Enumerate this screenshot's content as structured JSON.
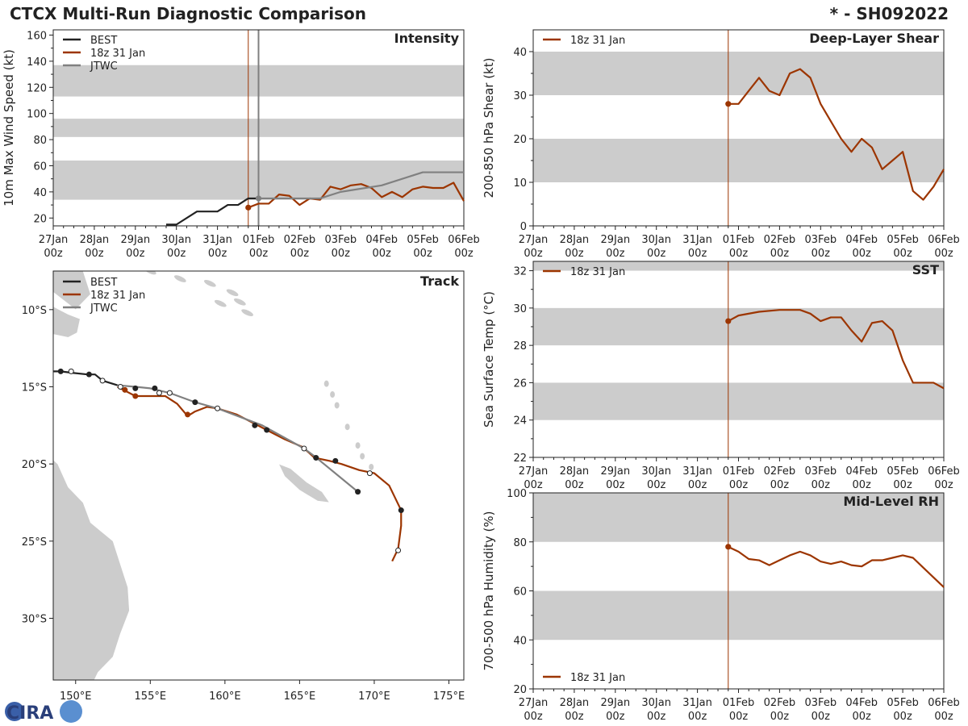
{
  "header": {
    "title": "CTCX Multi-Run Diagnostic Comparison",
    "storm_id": "* - SH092022",
    "logo_text": "CIRA"
  },
  "colors": {
    "best": "#222222",
    "run": "#9c3500",
    "jtwc": "#808080",
    "band": "#cccccc",
    "land": "#cccccc",
    "vline_run": "#9c3500",
    "vline_jtwc": "#808080"
  },
  "time_axis": {
    "labels": [
      "27Jan\n00z",
      "28Jan\n00z",
      "29Jan\n00z",
      "30Jan\n00z",
      "31Jan\n00z",
      "01Feb\n00z",
      "02Feb\n00z",
      "03Feb\n00z",
      "04Feb\n00z",
      "05Feb\n00z",
      "06Feb\n00z"
    ],
    "range_hours": [
      0,
      240
    ],
    "run_init_hour": 114,
    "jtwc_init_hour": 120
  },
  "chart_data": [
    {
      "id": "intensity",
      "type": "line",
      "title": "Intensity",
      "ylabel": "10m Max Wind Speed (kt)",
      "ylim": [
        14,
        164
      ],
      "yticks": [
        20,
        40,
        60,
        80,
        100,
        120,
        140,
        160
      ],
      "bands": [
        [
          34,
          64
        ],
        [
          82,
          96
        ],
        [
          113,
          137
        ]
      ],
      "legend": [
        "BEST",
        "18z 31 Jan",
        "JTWC"
      ],
      "series": [
        {
          "name": "BEST",
          "key": "best",
          "points": [
            [
              66,
              15
            ],
            [
              72,
              15
            ],
            [
              84,
              25
            ],
            [
              96,
              25
            ],
            [
              102,
              30
            ],
            [
              108,
              30
            ],
            [
              114,
              35
            ],
            [
              120,
              35
            ]
          ]
        },
        {
          "name": "18z 31 Jan",
          "key": "run",
          "start_marker": true,
          "points": [
            [
              114,
              28
            ],
            [
              120,
              31
            ],
            [
              126,
              31
            ],
            [
              132,
              38
            ],
            [
              138,
              37
            ],
            [
              144,
              30
            ],
            [
              150,
              35
            ],
            [
              156,
              34
            ],
            [
              162,
              44
            ],
            [
              168,
              42
            ],
            [
              174,
              45
            ],
            [
              180,
              46
            ],
            [
              186,
              43
            ],
            [
              192,
              36
            ],
            [
              198,
              40
            ],
            [
              204,
              36
            ],
            [
              210,
              42
            ],
            [
              216,
              44
            ],
            [
              222,
              43
            ],
            [
              228,
              43
            ],
            [
              234,
              47
            ],
            [
              240,
              33
            ]
          ]
        },
        {
          "name": "JTWC",
          "key": "jtwc",
          "start_marker": true,
          "points": [
            [
              120,
              35
            ],
            [
              144,
              35
            ],
            [
              156,
              35
            ],
            [
              168,
              40
            ],
            [
              192,
              45
            ],
            [
              216,
              55
            ],
            [
              240,
              55
            ]
          ]
        }
      ]
    },
    {
      "id": "shear",
      "type": "line",
      "title": "Deep-Layer Shear",
      "ylabel": "200-850 hPa Shear (kt)",
      "ylim": [
        0,
        45
      ],
      "yticks": [
        0,
        10,
        20,
        30,
        40
      ],
      "bands": [
        [
          10,
          20
        ],
        [
          30,
          40
        ]
      ],
      "legend": [
        "18z 31 Jan"
      ],
      "series": [
        {
          "name": "18z 31 Jan",
          "key": "run",
          "start_marker": true,
          "points": [
            [
              114,
              28
            ],
            [
              120,
              28
            ],
            [
              126,
              31
            ],
            [
              132,
              34
            ],
            [
              138,
              31
            ],
            [
              144,
              30
            ],
            [
              150,
              35
            ],
            [
              156,
              36
            ],
            [
              162,
              34
            ],
            [
              168,
              28
            ],
            [
              174,
              24
            ],
            [
              180,
              20
            ],
            [
              186,
              17
            ],
            [
              192,
              20
            ],
            [
              198,
              18
            ],
            [
              204,
              13
            ],
            [
              210,
              15
            ],
            [
              216,
              17
            ],
            [
              222,
              8
            ],
            [
              228,
              6
            ],
            [
              234,
              9
            ],
            [
              240,
              13
            ]
          ]
        }
      ]
    },
    {
      "id": "sst",
      "type": "line",
      "title": "SST",
      "ylabel": "Sea Surface Temp (°C)",
      "ylim": [
        22,
        32.5
      ],
      "yticks": [
        22,
        24,
        26,
        28,
        30,
        32
      ],
      "bands": [
        [
          24,
          26
        ],
        [
          28,
          30
        ],
        [
          32,
          32.5
        ]
      ],
      "legend": [
        "18z 31 Jan"
      ],
      "series": [
        {
          "name": "18z 31 Jan",
          "key": "run",
          "start_marker": true,
          "points": [
            [
              114,
              29.3
            ],
            [
              120,
              29.6
            ],
            [
              132,
              29.8
            ],
            [
              144,
              29.9
            ],
            [
              156,
              29.9
            ],
            [
              162,
              29.7
            ],
            [
              168,
              29.3
            ],
            [
              174,
              29.5
            ],
            [
              180,
              29.5
            ],
            [
              186,
              28.8
            ],
            [
              192,
              28.2
            ],
            [
              198,
              29.2
            ],
            [
              204,
              29.3
            ],
            [
              210,
              28.8
            ],
            [
              216,
              27.2
            ],
            [
              222,
              26
            ],
            [
              228,
              26
            ],
            [
              234,
              26
            ],
            [
              240,
              25.7
            ]
          ]
        }
      ]
    },
    {
      "id": "rh",
      "type": "line",
      "title": "Mid-Level RH",
      "ylabel": "700-500 hPa Humidity (%)",
      "ylim": [
        20,
        100
      ],
      "yticks": [
        20,
        40,
        60,
        80,
        100
      ],
      "bands": [
        [
          40,
          60
        ],
        [
          80,
          100
        ]
      ],
      "legend": [
        "18z 31 Jan"
      ],
      "series": [
        {
          "name": "18z 31 Jan",
          "key": "run",
          "start_marker": true,
          "points": [
            [
              114,
              78
            ],
            [
              120,
              76
            ],
            [
              126,
              73
            ],
            [
              132,
              72.5
            ],
            [
              138,
              70.5
            ],
            [
              144,
              72.5
            ],
            [
              150,
              74.5
            ],
            [
              156,
              76
            ],
            [
              162,
              74.5
            ],
            [
              168,
              72
            ],
            [
              174,
              71
            ],
            [
              180,
              72
            ],
            [
              186,
              70.5
            ],
            [
              192,
              70
            ],
            [
              198,
              72.5
            ],
            [
              204,
              72.5
            ],
            [
              210,
              73.5
            ],
            [
              216,
              74.5
            ],
            [
              222,
              73.5
            ],
            [
              228,
              69.5
            ],
            [
              234,
              65.5
            ],
            [
              240,
              61.5
            ]
          ]
        }
      ]
    },
    {
      "id": "track",
      "type": "scatter",
      "title": "Track",
      "xlim": [
        148.5,
        176
      ],
      "ylim": [
        -34,
        -7.5
      ],
      "xticks": [
        150,
        155,
        160,
        165,
        170,
        175
      ],
      "xtick_labels": [
        "150°E",
        "155°E",
        "160°E",
        "165°E",
        "170°E",
        "175°E"
      ],
      "yticks": [
        -10,
        -15,
        -20,
        -25,
        -30
      ],
      "ytick_labels": [
        "10°S",
        "15°S",
        "20°S",
        "25°S",
        "30°S"
      ],
      "legend": [
        "BEST",
        "18z 31 Jan",
        "JTWC"
      ],
      "series": [
        {
          "name": "BEST",
          "key": "best",
          "points": [
            [
              148.5,
              -14.0
            ],
            [
              149,
              -14
            ],
            [
              149.8,
              -14.1
            ],
            [
              150.8,
              -14.2
            ],
            [
              151.3,
              -14.2
            ],
            [
              151.8,
              -14.6
            ],
            [
              152.8,
              -14.9
            ]
          ]
        },
        {
          "name": "18z 31 Jan",
          "key": "run",
          "points": [
            [
              152.8,
              -15.0
            ],
            [
              153.2,
              -15.2
            ],
            [
              154,
              -15.6
            ],
            [
              154.8,
              -15.6
            ],
            [
              155.6,
              -15.6
            ],
            [
              156,
              -15.6
            ],
            [
              156.8,
              -16.1
            ],
            [
              157.5,
              -16.9
            ],
            [
              158,
              -16.6
            ],
            [
              158.8,
              -16.3
            ],
            [
              159.5,
              -16.4
            ],
            [
              160.8,
              -16.8
            ],
            [
              162,
              -17.4
            ],
            [
              163,
              -17.9
            ],
            [
              164,
              -18.4
            ],
            [
              165.2,
              -18.9
            ],
            [
              166,
              -19.6
            ],
            [
              167,
              -19.8
            ],
            [
              167.8,
              -20
            ],
            [
              169,
              -20.4
            ],
            [
              170,
              -20.6
            ],
            [
              171,
              -21.4
            ],
            [
              171.8,
              -23
            ],
            [
              171.8,
              -24
            ],
            [
              171.6,
              -25.5
            ],
            [
              171.2,
              -26.3
            ]
          ]
        },
        {
          "name": "JTWC",
          "key": "jtwc",
          "points": [
            [
              152.8,
              -14.9
            ],
            [
              154,
              -15.0
            ],
            [
              155,
              -15.1
            ],
            [
              156.3,
              -15.4
            ],
            [
              158,
              -16.0
            ],
            [
              159.5,
              -16.4
            ],
            [
              162.5,
              -17.5
            ],
            [
              165.3,
              -19
            ],
            [
              166,
              -19.5
            ],
            [
              168.9,
              -21.8
            ]
          ]
        },
        {
          "name": "BEST fixes",
          "key": "best",
          "marker": "filled",
          "points": [
            [
              149,
              -14.0
            ],
            [
              150.9,
              -14.2
            ],
            [
              154,
              -15.1
            ],
            [
              155.3,
              -15.1
            ],
            [
              158,
              -16.0
            ],
            [
              162,
              -17.5
            ],
            [
              162.8,
              -17.8
            ],
            [
              166.1,
              -19.6
            ],
            [
              167.4,
              -19.8
            ],
            [
              168.9,
              -21.8
            ],
            [
              171.8,
              -23.0
            ]
          ]
        },
        {
          "name": "Run fixes",
          "key": "run",
          "marker": "filled",
          "points": [
            [
              153.3,
              -15.2
            ],
            [
              154,
              -15.6
            ],
            [
              157.5,
              -16.8
            ]
          ]
        },
        {
          "name": "Open fixes",
          "key": "best",
          "marker": "open",
          "points": [
            [
              149.7,
              -14.0
            ],
            [
              151.8,
              -14.6
            ],
            [
              153,
              -15.0
            ],
            [
              155.6,
              -15.4
            ],
            [
              156.3,
              -15.4
            ],
            [
              159.5,
              -16.4
            ],
            [
              165.3,
              -19.0
            ],
            [
              169.7,
              -20.6
            ],
            [
              171.6,
              -25.6
            ]
          ]
        }
      ]
    }
  ]
}
